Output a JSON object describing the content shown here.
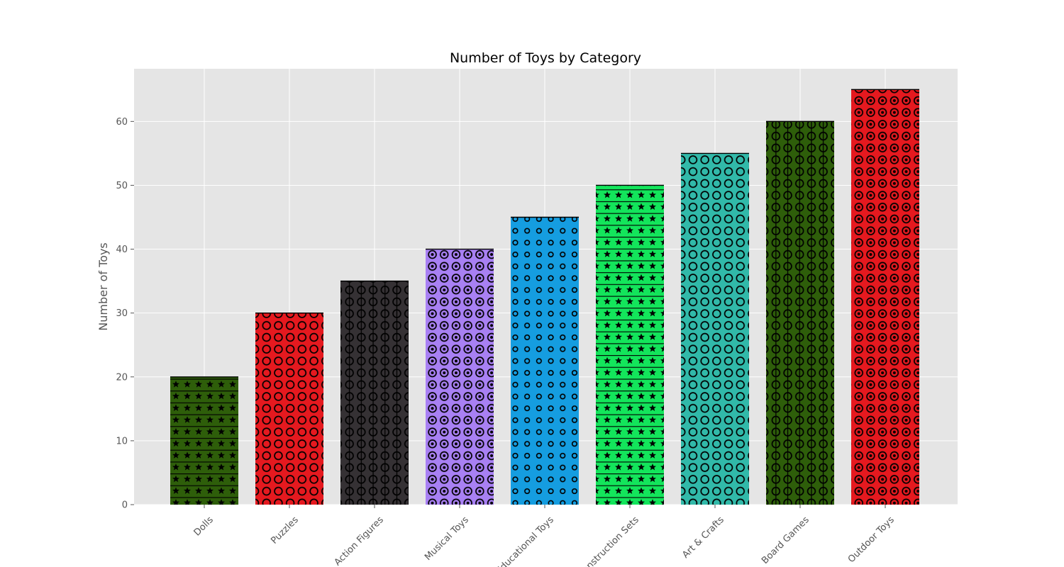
{
  "chart_data": {
    "type": "bar",
    "title": "Number of Toys by Category",
    "xlabel": "",
    "ylabel": "Number of Toys",
    "categories": [
      "Dolls",
      "Puzzles",
      "Action Figures",
      "Musical Toys",
      "Educational Toys",
      "Construction Sets",
      "Art & Crafts",
      "Board Games",
      "Outdoor Toys"
    ],
    "values": [
      20,
      30,
      35,
      40,
      45,
      50,
      55,
      60,
      65
    ],
    "colors": [
      "#2e5e0a",
      "#e5191f",
      "#353134",
      "#a880f3",
      "#159de0",
      "#13e55b",
      "#31b9a9",
      "#2e5e0a",
      "#e5191f"
    ],
    "hatches": [
      "star",
      "circle",
      "vertical-circle",
      "ring",
      "small-circle",
      "star",
      "circle",
      "vertical-circle",
      "ring"
    ],
    "ylim": [
      0,
      68.25
    ],
    "yticks": [
      0,
      10,
      20,
      30,
      40,
      50,
      60
    ],
    "grid": true,
    "legend": "none",
    "axes_background": "#e5e5e5",
    "grid_color": "#ffffff"
  }
}
